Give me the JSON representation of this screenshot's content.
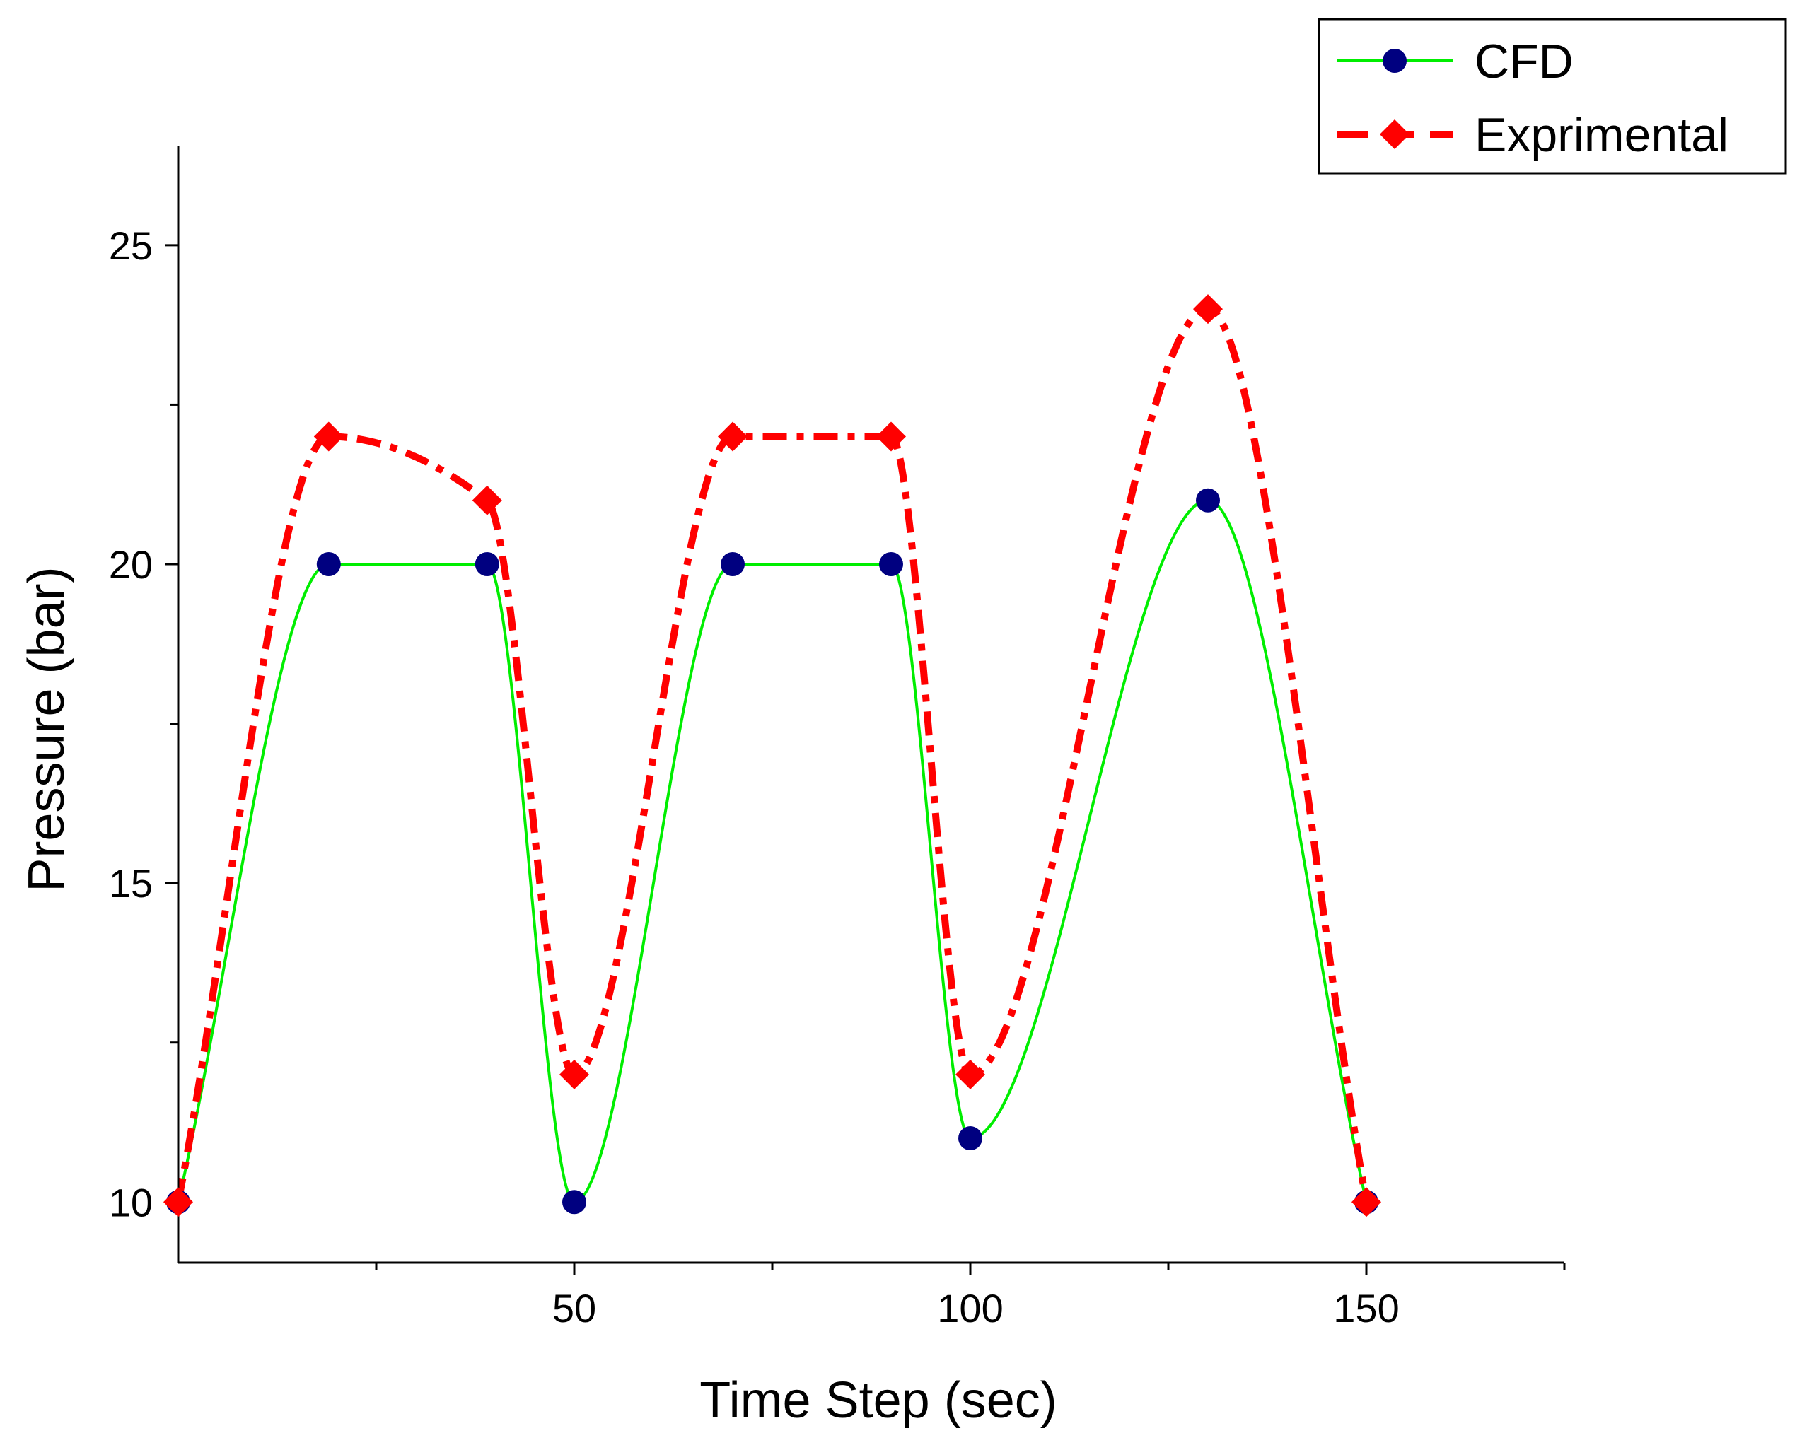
{
  "chart_data": {
    "type": "line",
    "title": "",
    "xlabel": "Time Step (sec)",
    "ylabel": "Pressure (bar)",
    "xlim": [
      0,
      175
    ],
    "ylim": [
      9.05,
      26.55
    ],
    "x_ticks": [
      50,
      100,
      150
    ],
    "x_tick_labels": [
      "50",
      "100",
      "150"
    ],
    "x_minor_ticks": [
      25,
      75,
      125,
      175
    ],
    "y_ticks": [
      10,
      15,
      20,
      25
    ],
    "y_tick_labels": [
      "10",
      "15",
      "20",
      "25"
    ],
    "y_minor_ticks": [
      12.5,
      17.5,
      22.5
    ],
    "grid": false,
    "legend_position": "top-right",
    "series": [
      {
        "name": "CFD",
        "color": "#00ee00",
        "marker": "circle",
        "marker_color": "#000080",
        "line_style": "solid",
        "x": [
          0,
          19,
          39,
          50,
          70,
          90,
          100,
          130,
          150
        ],
        "y": [
          10,
          20,
          20,
          10,
          20,
          20,
          11,
          21,
          10
        ]
      },
      {
        "name": "Exprimental",
        "color": "#ff0000",
        "marker": "diamond",
        "marker_color": "#ff0000",
        "line_style": "dash-dot",
        "x": [
          0,
          19,
          39,
          50,
          70,
          90,
          100,
          130,
          150
        ],
        "y": [
          10,
          22,
          21,
          12,
          22,
          22,
          12,
          24,
          10
        ]
      }
    ]
  }
}
